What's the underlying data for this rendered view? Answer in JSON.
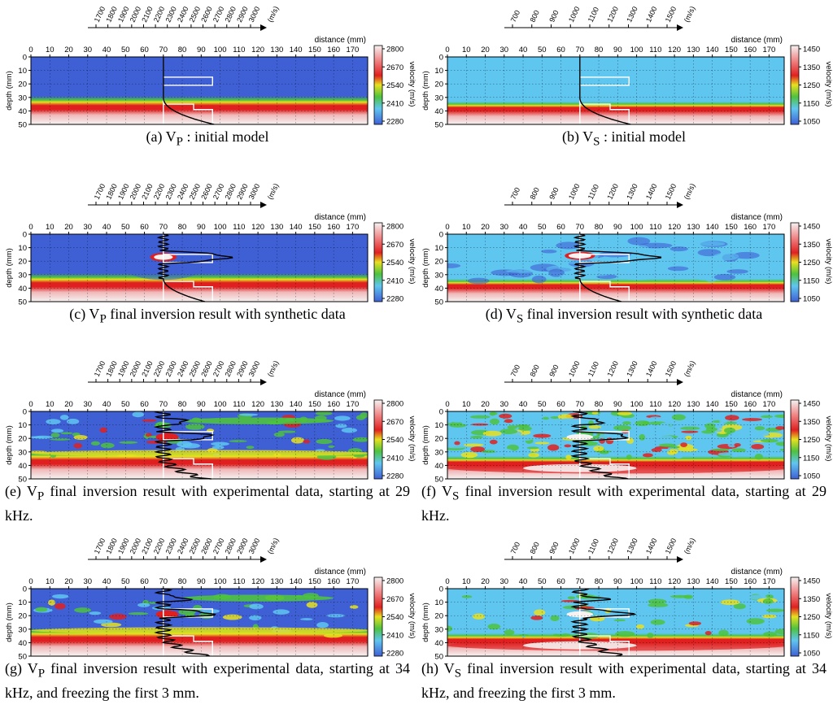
{
  "common": {
    "distance_label": "distance (mm)",
    "depth_label": "depth (mm)",
    "velocity_label": "velocity (m/s)",
    "ms_label": "(m/s)",
    "distance_ticks": [
      "0",
      "10",
      "20",
      "30",
      "40",
      "50",
      "60",
      "70",
      "80",
      "90",
      "100",
      "110",
      "120",
      "130",
      "140",
      "150",
      "160",
      "170"
    ],
    "depth_ticks": [
      "0",
      "10",
      "20",
      "30",
      "40",
      "50"
    ]
  },
  "colors": {
    "blue_dark": "#3f5fd4",
    "blue_light": "#5fc6f0",
    "green": "#4ec23e",
    "yellow": "#e8e020",
    "red": "#e02020",
    "white": "#f6f2f2"
  },
  "panels": [
    {
      "id": "a",
      "caption": "(a) V<sub>P</sub> : initial model",
      "wave": "P",
      "type": "initial",
      "velocity_scale": [
        "2800",
        "2670",
        "2540",
        "2410",
        "2280"
      ],
      "profile_ticks": [
        "1700",
        "1800",
        "1900",
        "2000",
        "2100",
        "2200",
        "2300",
        "2400",
        "2500",
        "2600",
        "2700",
        "2800",
        "2900",
        "3000"
      ]
    },
    {
      "id": "b",
      "caption": "(b) V<sub>S</sub> : initial model",
      "wave": "S",
      "type": "initial",
      "velocity_scale": [
        "1450",
        "1350",
        "1250",
        "1150",
        "1050"
      ],
      "profile_ticks": [
        "700",
        "800",
        "900",
        "1000",
        "1100",
        "1200",
        "1300",
        "1400",
        "1500"
      ]
    },
    {
      "id": "c",
      "caption": "(c) V<sub>P</sub> final inversion result with synthetic data",
      "wave": "P",
      "type": "synthetic",
      "velocity_scale": [
        "2800",
        "2670",
        "2540",
        "2410",
        "2280"
      ],
      "profile_ticks": [
        "1700",
        "1800",
        "1900",
        "2000",
        "2100",
        "2200",
        "2300",
        "2400",
        "2500",
        "2600",
        "2700",
        "2800",
        "2900",
        "3000"
      ]
    },
    {
      "id": "d",
      "caption": "(d) V<sub>S</sub> final inversion result with synthetic data",
      "wave": "S",
      "type": "synthetic",
      "velocity_scale": [
        "1450",
        "1350",
        "1250",
        "1150",
        "1050"
      ],
      "profile_ticks": [
        "700",
        "800",
        "900",
        "1000",
        "1100",
        "1200",
        "1300",
        "1400",
        "1500"
      ]
    },
    {
      "id": "e",
      "caption": "(e) V<sub>P</sub> final inversion result with experimental data, starting at 29 kHz.",
      "wave": "P",
      "type": "exp29",
      "velocity_scale": [
        "2800",
        "2670",
        "2540",
        "2410",
        "2280"
      ],
      "profile_ticks": [
        "1700",
        "1800",
        "1900",
        "2000",
        "2100",
        "2200",
        "2300",
        "2400",
        "2500",
        "2600",
        "2700",
        "2800",
        "2900",
        "3000"
      ]
    },
    {
      "id": "f",
      "caption": "(f) V<sub>S</sub> final inversion result with experimental data, starting at 29 kHz.",
      "wave": "S",
      "type": "exp29",
      "velocity_scale": [
        "1450",
        "1350",
        "1250",
        "1150",
        "1050"
      ],
      "profile_ticks": [
        "700",
        "800",
        "900",
        "1000",
        "1100",
        "1200",
        "1300",
        "1400",
        "1500"
      ]
    },
    {
      "id": "g",
      "caption": "(g) V<sub>P</sub> final inversion result with experimental data, starting at 34 kHz, and freezing the first 3 mm.",
      "wave": "P",
      "type": "exp34",
      "velocity_scale": [
        "2800",
        "2670",
        "2540",
        "2410",
        "2280"
      ],
      "profile_ticks": [
        "1700",
        "1800",
        "1900",
        "2000",
        "2100",
        "2200",
        "2300",
        "2400",
        "2500",
        "2600",
        "2700",
        "2800",
        "2900",
        "3000"
      ]
    },
    {
      "id": "h",
      "caption": "(h) V<sub>S</sub> final inversion result with experimental data, starting at 34 kHz, and freezing the first 3 mm.",
      "wave": "S",
      "type": "exp34",
      "velocity_scale": [
        "1450",
        "1350",
        "1250",
        "1150",
        "1050"
      ],
      "profile_ticks": [
        "700",
        "800",
        "900",
        "1000",
        "1100",
        "1200",
        "1300",
        "1400",
        "1500"
      ]
    }
  ],
  "chart_data": [
    {
      "type": "heatmap",
      "panel": "a",
      "title": "",
      "xlabel": "distance (mm)",
      "ylabel": "depth (mm)",
      "xlim": [
        0,
        178
      ],
      "ylim": [
        0,
        50
      ],
      "colorbar_label": "velocity (m/s)",
      "colorbar_range": [
        2280,
        2800
      ],
      "profile_axis_label": "(m/s)",
      "profile_axis_range": [
        1700,
        3000
      ]
    },
    {
      "type": "heatmap",
      "panel": "b",
      "title": "",
      "xlabel": "distance (mm)",
      "ylabel": "depth (mm)",
      "xlim": [
        0,
        178
      ],
      "ylim": [
        0,
        50
      ],
      "colorbar_label": "velocity (m/s)",
      "colorbar_range": [
        1050,
        1450
      ],
      "profile_axis_label": "(m/s)",
      "profile_axis_range": [
        700,
        1500
      ]
    },
    {
      "type": "heatmap",
      "panel": "c",
      "title": "",
      "xlabel": "distance (mm)",
      "ylabel": "depth (mm)",
      "xlim": [
        0,
        178
      ],
      "ylim": [
        0,
        50
      ],
      "colorbar_label": "velocity (m/s)",
      "colorbar_range": [
        2280,
        2800
      ],
      "profile_axis_label": "(m/s)",
      "profile_axis_range": [
        1700,
        3000
      ]
    },
    {
      "type": "heatmap",
      "panel": "d",
      "title": "",
      "xlabel": "distance (mm)",
      "ylabel": "depth (mm)",
      "xlim": [
        0,
        178
      ],
      "ylim": [
        0,
        50
      ],
      "colorbar_label": "velocity (m/s)",
      "colorbar_range": [
        1050,
        1450
      ],
      "profile_axis_label": "(m/s)",
      "profile_axis_range": [
        700,
        1500
      ]
    },
    {
      "type": "heatmap",
      "panel": "e",
      "title": "",
      "xlabel": "distance (mm)",
      "ylabel": "depth (mm)",
      "xlim": [
        0,
        178
      ],
      "ylim": [
        0,
        50
      ],
      "colorbar_label": "velocity (m/s)",
      "colorbar_range": [
        2280,
        2800
      ],
      "profile_axis_label": "(m/s)",
      "profile_axis_range": [
        1700,
        3000
      ]
    },
    {
      "type": "heatmap",
      "panel": "f",
      "title": "",
      "xlabel": "distance (mm)",
      "ylabel": "depth (mm)",
      "xlim": [
        0,
        178
      ],
      "ylim": [
        0,
        50
      ],
      "colorbar_label": "velocity (m/s)",
      "colorbar_range": [
        1050,
        1450
      ],
      "profile_axis_label": "(m/s)",
      "profile_axis_range": [
        700,
        1500
      ]
    },
    {
      "type": "heatmap",
      "panel": "g",
      "title": "",
      "xlabel": "distance (mm)",
      "ylabel": "depth (mm)",
      "xlim": [
        0,
        178
      ],
      "ylim": [
        0,
        50
      ],
      "colorbar_label": "velocity (m/s)",
      "colorbar_range": [
        2280,
        2800
      ],
      "profile_axis_label": "(m/s)",
      "profile_axis_range": [
        1700,
        3000
      ]
    },
    {
      "type": "heatmap",
      "panel": "h",
      "title": "",
      "xlabel": "distance (mm)",
      "ylabel": "depth (mm)",
      "xlim": [
        0,
        178
      ],
      "ylim": [
        0,
        50
      ],
      "colorbar_label": "velocity (m/s)",
      "colorbar_range": [
        1050,
        1450
      ],
      "profile_axis_label": "(m/s)",
      "profile_axis_range": [
        700,
        1500
      ]
    }
  ]
}
